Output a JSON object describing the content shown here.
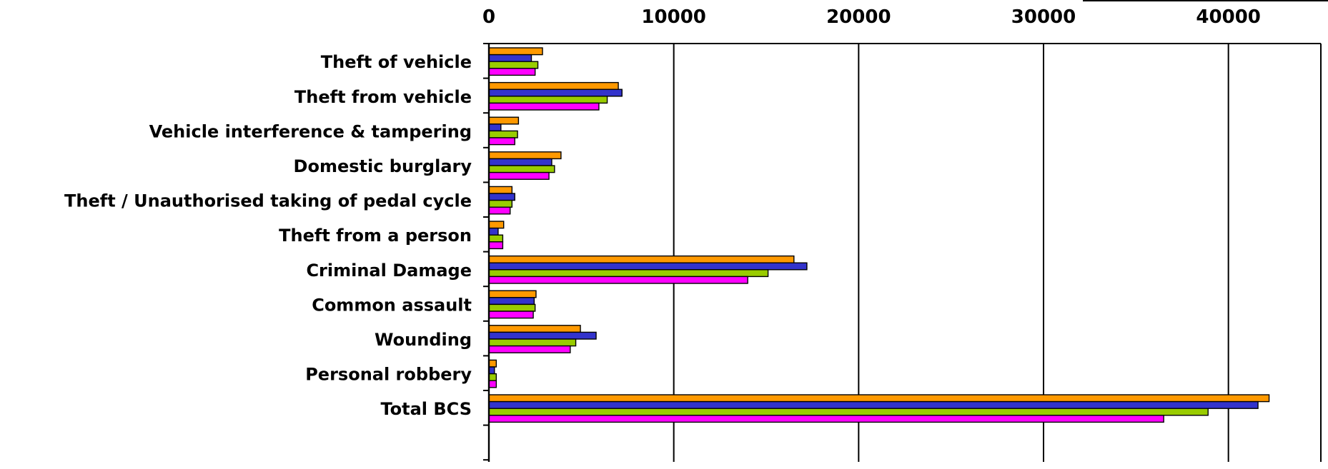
{
  "chart_data": {
    "type": "bar",
    "orientation": "horizontal",
    "title": "",
    "xlabel": "",
    "ylabel": "",
    "xlim": [
      0,
      45000
    ],
    "x_ticks": [
      0,
      10000,
      20000,
      30000,
      40000
    ],
    "grid": true,
    "legend": "none",
    "categories": [
      "Theft of vehicle",
      "Theft from vehicle",
      "Vehicle interference & tampering",
      "Domestic burglary",
      "Theft / Unauthorised taking of pedal cycle",
      "Theft from a person",
      "Criminal Damage",
      "Common assault",
      "Wounding",
      "Personal robbery",
      "Total BCS"
    ],
    "series": [
      {
        "color": "#ff9900",
        "values": [
          2900,
          7000,
          1600,
          3900,
          1250,
          800,
          16500,
          2550,
          4950,
          400,
          42200
        ]
      },
      {
        "color": "#3333cc",
        "values": [
          2300,
          7200,
          650,
          3400,
          1400,
          500,
          17200,
          2450,
          5800,
          300,
          41600
        ]
      },
      {
        "color": "#99cc00",
        "values": [
          2650,
          6400,
          1550,
          3550,
          1250,
          750,
          15100,
          2500,
          4700,
          400,
          38900
        ]
      },
      {
        "color": "#ff00ff",
        "values": [
          2500,
          5950,
          1400,
          3250,
          1150,
          750,
          14000,
          2400,
          4400,
          400,
          36500
        ]
      }
    ]
  }
}
